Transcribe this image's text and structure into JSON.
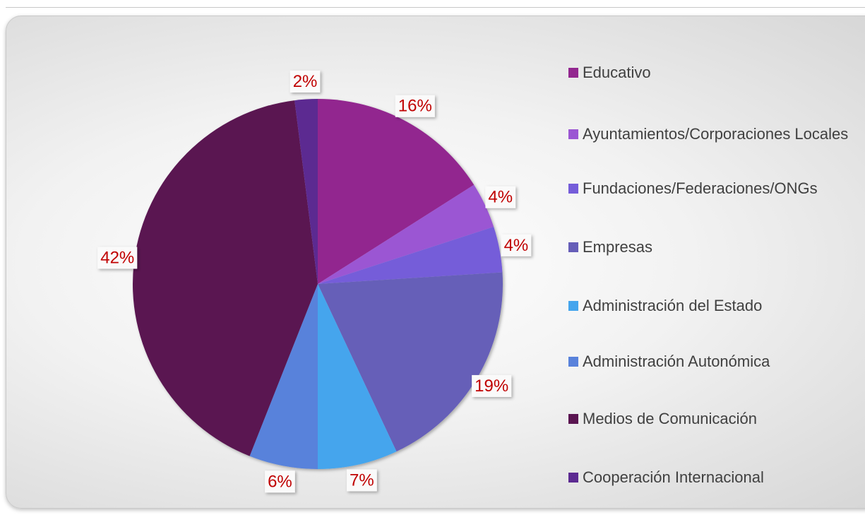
{
  "chart_data": {
    "type": "pie",
    "categories": [
      "Educativo",
      "Ayuntamientos/Corporaciones Locales",
      "Fundaciones/Federaciones/ONGs",
      "Empresas",
      "Administración del Estado",
      "Administración Autonómica",
      "Medios de Comunicación",
      "Cooperación Internacional"
    ],
    "values": [
      16,
      4,
      4,
      19,
      7,
      6,
      42,
      2
    ],
    "value_labels": [
      "16%",
      "4%",
      "4%",
      "19%",
      "7%",
      "6%",
      "42%",
      "2%"
    ],
    "colors": [
      "#92278f",
      "#9b57d3",
      "#755dd9",
      "#665eb8",
      "#45a5ed",
      "#5982db",
      "#5a1551",
      "#5c2a91"
    ],
    "legend": "right"
  }
}
